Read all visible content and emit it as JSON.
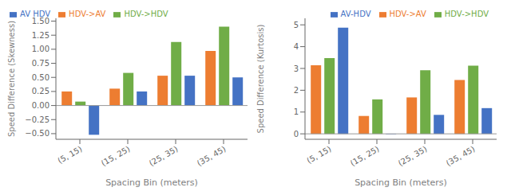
{
  "chart_data": [
    {
      "type": "bar",
      "xlabel": "Spacing Bin (meters)",
      "ylabel": "Speed Difference (Skewness)",
      "categories": [
        "(5, 15)",
        "(15, 25)",
        "(25, 35)",
        "(35, 45)"
      ],
      "series": [
        {
          "name": "HDV->AV",
          "color": "#ed7d31",
          "values": [
            0.25,
            0.3,
            0.53,
            0.97
          ]
        },
        {
          "name": "HDV->HDV",
          "color": "#70ad47",
          "values": [
            0.07,
            0.58,
            1.13,
            1.4
          ]
        },
        {
          "name": "AV HDV",
          "color": "#4472c4",
          "values": [
            -0.52,
            0.25,
            0.53,
            0.5
          ]
        }
      ],
      "ylim": [
        -0.6,
        1.55
      ],
      "yticks": [
        {
          "value": -0.5,
          "label": "−0.50"
        },
        {
          "value": -0.25,
          "label": "−0.25"
        },
        {
          "value": 0,
          "label": "0.00"
        },
        0.25,
        {
          "value": 0.5,
          "label": "0.50"
        },
        0.75,
        {
          "value": 1,
          "label": "1.00"
        },
        1.25,
        {
          "value": 1.5,
          "label": "1.50"
        }
      ],
      "grid": false,
      "legend": "upper left"
    },
    {
      "type": "bar",
      "xlabel": "Spacing Bin (meters)",
      "ylabel": "Speed Difference (Kurtosis)",
      "categories": [
        "(5, 15)",
        "(15, 25)",
        "(25, 35)",
        "(35, 45)"
      ],
      "series": [
        {
          "name": "HDV->AV",
          "color": "#ed7d31",
          "values": [
            3.15,
            0.82,
            1.67,
            2.47
          ]
        },
        {
          "name": "HDV->HDV",
          "color": "#70ad47",
          "values": [
            3.47,
            1.58,
            2.92,
            3.13
          ]
        },
        {
          "name": "AV-HDV",
          "color": "#4472c4",
          "values": [
            4.87,
            -0.02,
            0.87,
            1.18
          ]
        }
      ],
      "ylim": [
        -0.25,
        5.3
      ],
      "yticks": [
        0,
        1,
        2,
        3,
        4,
        5
      ],
      "grid": false,
      "legend": "upper right"
    }
  ]
}
